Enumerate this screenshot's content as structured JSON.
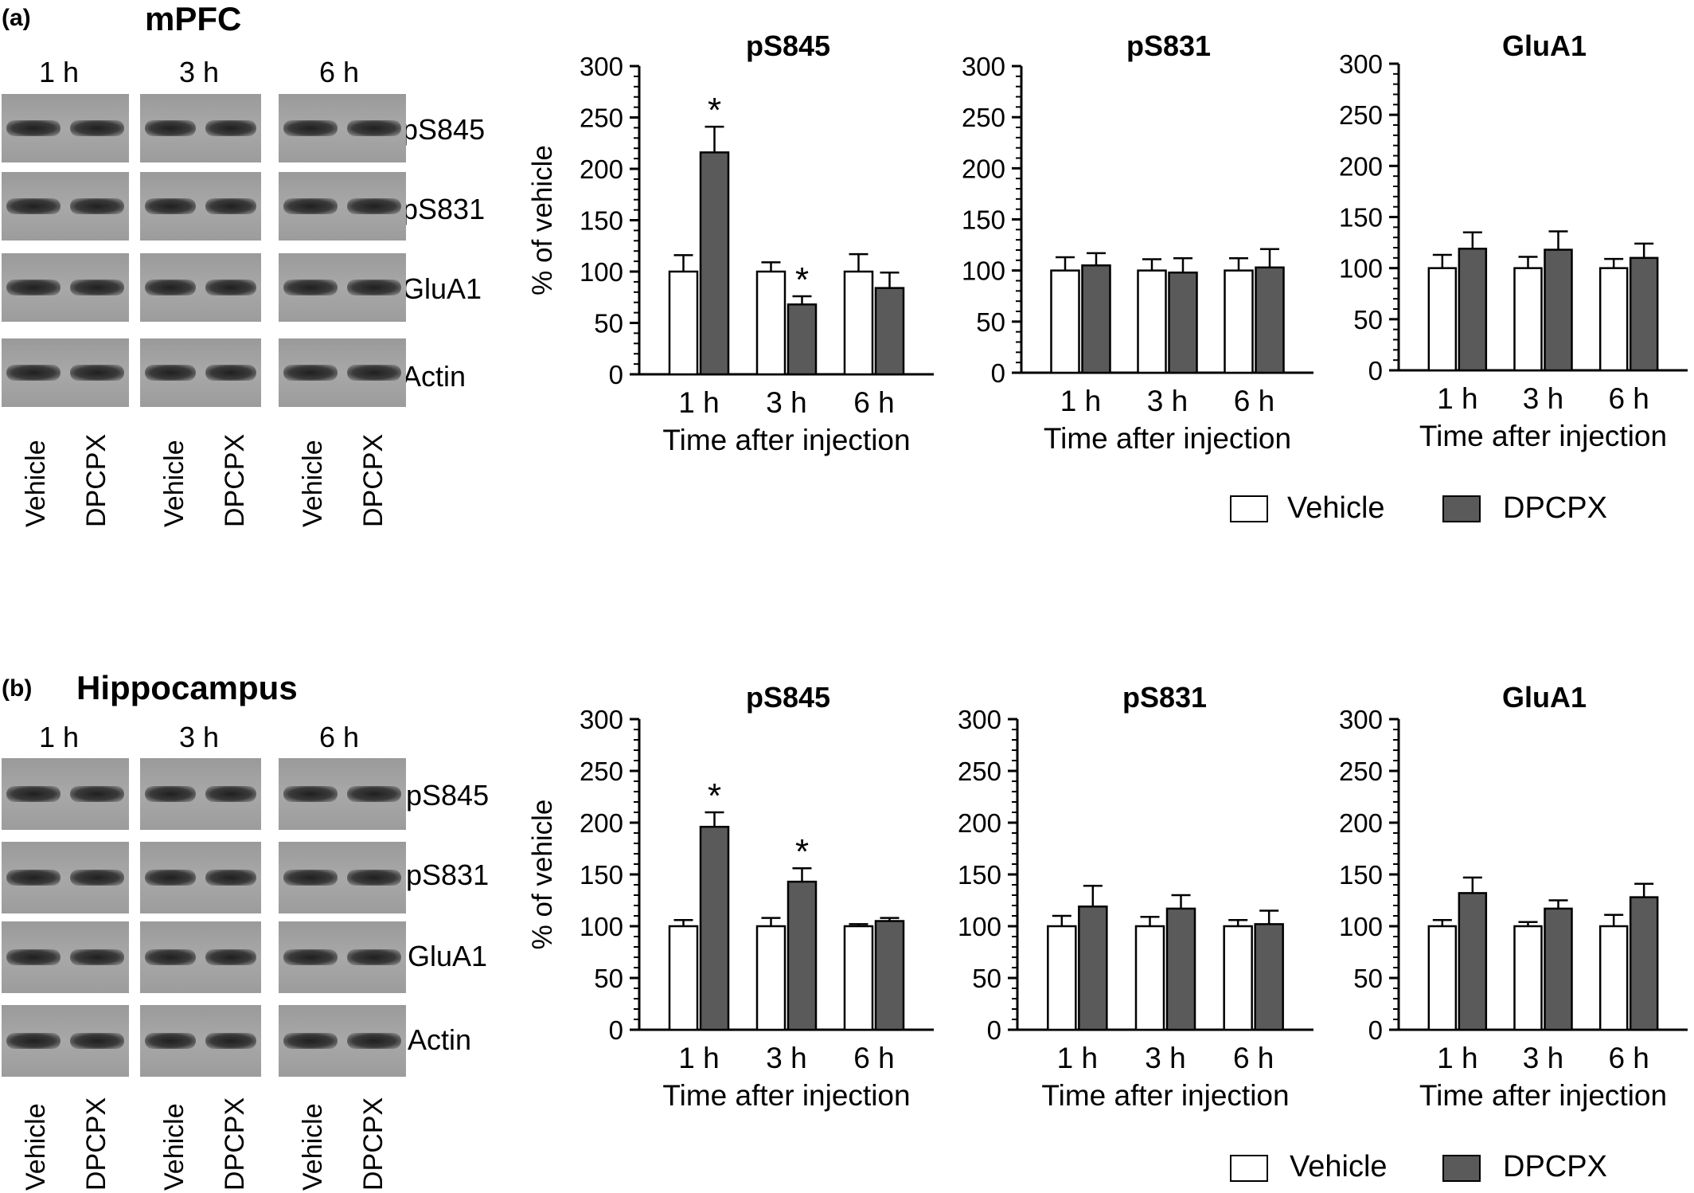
{
  "panels": [
    {
      "letter": "(a)",
      "region": "mPFC",
      "times": [
        "1 h",
        "3 h",
        "6 h"
      ],
      "proteins": [
        "pS845",
        "pS831",
        "GluA1",
        "Actin"
      ],
      "lanes": [
        "Vehicle",
        "DPCPX"
      ]
    },
    {
      "letter": "(b)",
      "region": "Hippocampus",
      "times": [
        "1 h",
        "3 h",
        "6 h"
      ],
      "proteins": [
        "pS845",
        "pS831",
        "GluA1",
        "Actin"
      ],
      "lanes": [
        "Vehicle",
        "DPCPX"
      ]
    }
  ],
  "legend": {
    "vehicle": "Vehicle",
    "dpcpx": "DPCPX"
  },
  "colors": {
    "vehicle_fill": "#ffffff",
    "dpcpx_fill": "#5a5a5a",
    "stroke": "#000000"
  },
  "chart_data": [
    {
      "type": "bar",
      "panel": "(a)",
      "title": "pS845",
      "categories": [
        "1 h",
        "3 h",
        "6 h"
      ],
      "xlabel": "Time after injection",
      "ylabel": "% of vehicle",
      "ylim": [
        0,
        300
      ],
      "yticks": [
        0,
        50,
        100,
        150,
        200,
        250,
        300
      ],
      "series": [
        {
          "name": "Vehicle",
          "values": [
            100,
            100,
            100
          ],
          "errors": [
            16,
            9,
            17
          ]
        },
        {
          "name": "DPCPX",
          "values": [
            216,
            68,
            84
          ],
          "errors": [
            25,
            8,
            15
          ]
        }
      ],
      "significance": [
        "*",
        "*",
        ""
      ]
    },
    {
      "type": "bar",
      "panel": "(a)",
      "title": "pS831",
      "categories": [
        "1 h",
        "3 h",
        "6 h"
      ],
      "xlabel": "Time after injection",
      "ylabel": "",
      "ylim": [
        0,
        300
      ],
      "yticks": [
        0,
        50,
        100,
        150,
        200,
        250,
        300
      ],
      "series": [
        {
          "name": "Vehicle",
          "values": [
            100,
            100,
            100
          ],
          "errors": [
            13,
            11,
            12
          ]
        },
        {
          "name": "DPCPX",
          "values": [
            105,
            98,
            103
          ],
          "errors": [
            12,
            14,
            18
          ]
        }
      ],
      "significance": [
        "",
        "",
        ""
      ]
    },
    {
      "type": "bar",
      "panel": "(a)",
      "title": "GluA1",
      "categories": [
        "1 h",
        "3 h",
        "6 h"
      ],
      "xlabel": "Time after injection",
      "ylabel": "",
      "ylim": [
        0,
        300
      ],
      "yticks": [
        0,
        50,
        100,
        150,
        200,
        250,
        300
      ],
      "series": [
        {
          "name": "Vehicle",
          "values": [
            100,
            100,
            100
          ],
          "errors": [
            13,
            11,
            9
          ]
        },
        {
          "name": "DPCPX",
          "values": [
            119,
            118,
            110
          ],
          "errors": [
            16,
            18,
            14
          ]
        }
      ],
      "significance": [
        "",
        "",
        ""
      ]
    },
    {
      "type": "bar",
      "panel": "(b)",
      "title": "pS845",
      "categories": [
        "1 h",
        "3 h",
        "6 h"
      ],
      "xlabel": "Time after injection",
      "ylabel": "% of vehicle",
      "ylim": [
        0,
        300
      ],
      "yticks": [
        0,
        50,
        100,
        150,
        200,
        250,
        300
      ],
      "series": [
        {
          "name": "Vehicle",
          "values": [
            100,
            100,
            100
          ],
          "errors": [
            6,
            8,
            2
          ]
        },
        {
          "name": "DPCPX",
          "values": [
            196,
            143,
            105
          ],
          "errors": [
            14,
            13,
            3
          ]
        }
      ],
      "significance": [
        "*",
        "*",
        ""
      ]
    },
    {
      "type": "bar",
      "panel": "(b)",
      "title": "pS831",
      "categories": [
        "1 h",
        "3 h",
        "6 h"
      ],
      "xlabel": "Time after injection",
      "ylabel": "",
      "ylim": [
        0,
        300
      ],
      "yticks": [
        0,
        50,
        100,
        150,
        200,
        250,
        300
      ],
      "series": [
        {
          "name": "Vehicle",
          "values": [
            100,
            100,
            100
          ],
          "errors": [
            10,
            9,
            6
          ]
        },
        {
          "name": "DPCPX",
          "values": [
            119,
            117,
            102
          ],
          "errors": [
            20,
            13,
            13
          ]
        }
      ],
      "significance": [
        "",
        "",
        ""
      ]
    },
    {
      "type": "bar",
      "panel": "(b)",
      "title": "GluA1",
      "categories": [
        "1 h",
        "3 h",
        "6 h"
      ],
      "xlabel": "Time after injection",
      "ylabel": "",
      "ylim": [
        0,
        300
      ],
      "yticks": [
        0,
        50,
        100,
        150,
        200,
        250,
        300
      ],
      "series": [
        {
          "name": "Vehicle",
          "values": [
            100,
            100,
            100
          ],
          "errors": [
            6,
            4,
            11
          ]
        },
        {
          "name": "DPCPX",
          "values": [
            132,
            117,
            128
          ],
          "errors": [
            15,
            8,
            13
          ]
        }
      ],
      "significance": [
        "",
        "",
        ""
      ]
    }
  ]
}
